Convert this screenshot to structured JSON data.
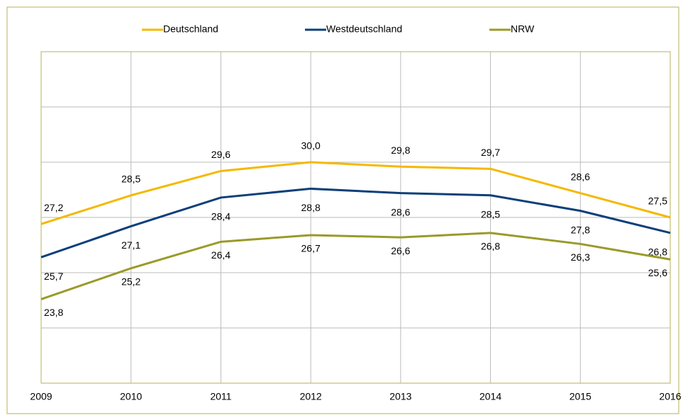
{
  "chart_data": {
    "type": "line",
    "x": [
      2009,
      2010,
      2011,
      2012,
      2013,
      2014,
      2015,
      2016
    ],
    "xlim": [
      2009,
      2016
    ],
    "xticks": [
      2009,
      2010,
      2011,
      2012,
      2013,
      2014,
      2015,
      2016
    ],
    "ylim": [
      20,
      35
    ],
    "yticks": [
      20,
      22.5,
      25,
      27.5,
      30,
      32.5,
      35
    ],
    "grid": true,
    "legend": "top",
    "series": [
      {
        "name": "Deutschland",
        "color": "#f5b800",
        "values": [
          27.2,
          28.5,
          29.6,
          30.0,
          29.8,
          29.7,
          28.6,
          27.5
        ],
        "value_labels": [
          "27,2",
          "28,5",
          "29,6",
          "30,0",
          "29,8",
          "29,7",
          "28,6",
          "27,5"
        ]
      },
      {
        "name": "Westdeutschland",
        "color": "#0d3f7a",
        "values": [
          25.7,
          27.1,
          28.4,
          28.8,
          28.6,
          28.5,
          27.8,
          26.8
        ],
        "value_labels": [
          "25,7",
          "27,1",
          "28,4",
          "28,8",
          "28,6",
          "28,5",
          "27,8",
          "26,8"
        ]
      },
      {
        "name": "NRW",
        "color": "#9a9a2a",
        "values": [
          23.8,
          25.2,
          26.4,
          26.7,
          26.6,
          26.8,
          26.3,
          25.6
        ],
        "value_labels": [
          "23,8",
          "25,2",
          "26,4",
          "26,7",
          "26,6",
          "26,8",
          "26,3",
          "25,6"
        ]
      }
    ]
  }
}
